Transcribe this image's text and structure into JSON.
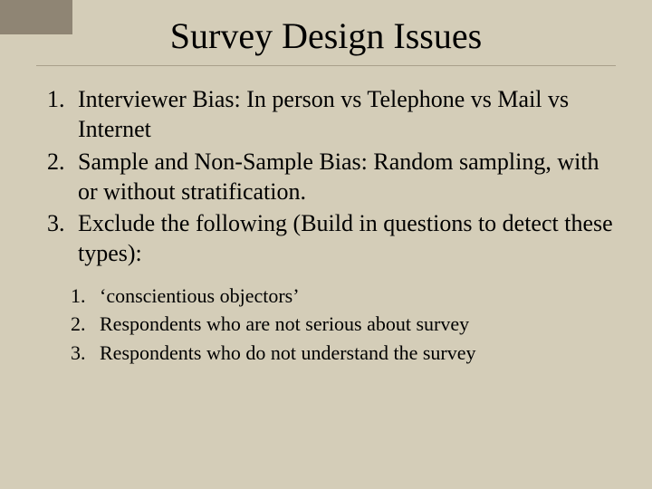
{
  "background_color": "#d4cdb8",
  "corner_block_color": "#8f8574",
  "divider_color": "#a9a08a",
  "text_color": "#000000",
  "font_family": "Times New Roman, serif",
  "title": {
    "text": "Survey Design Issues",
    "fontsize_pt": 40
  },
  "main_list": {
    "type": "ordered",
    "fontsize_pt": 26,
    "items": [
      "Interviewer Bias: In person vs Telephone vs Mail vs Internet",
      "Sample and Non-Sample Bias: Random sampling, with or without stratification.",
      "Exclude the following (Build in questions to detect these types):"
    ]
  },
  "sub_list": {
    "type": "ordered",
    "fontsize_pt": 22,
    "items": [
      "‘conscientious objectors’",
      "Respondents who are not serious about survey",
      "Respondents who do not understand the survey"
    ]
  }
}
